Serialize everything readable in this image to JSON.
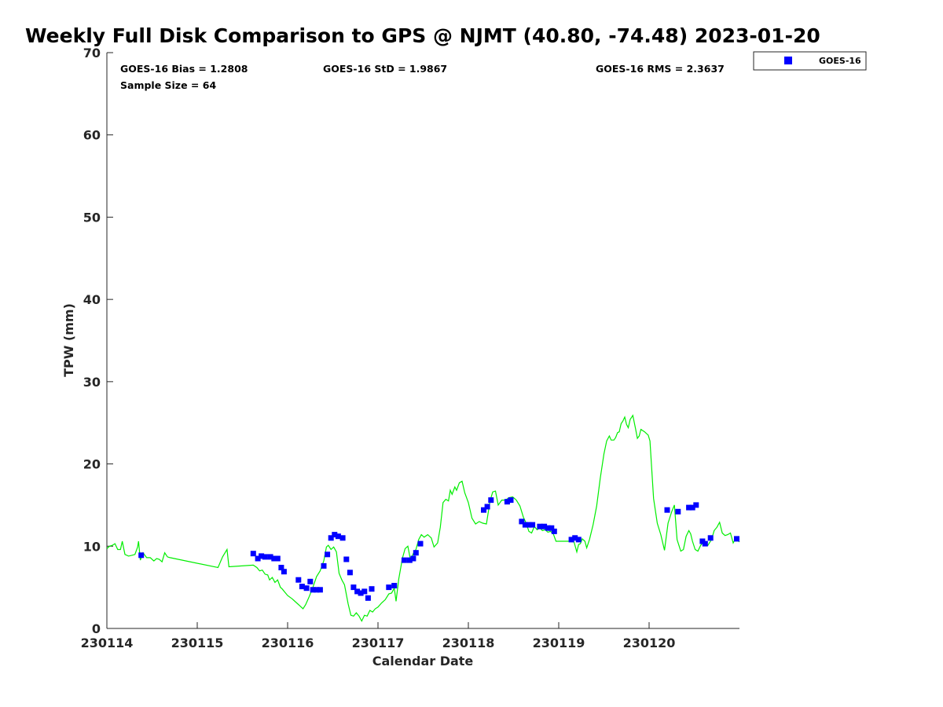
{
  "chart_data": {
    "type": "scatter",
    "title": "Weekly Full Disk Comparison to GPS @ NJMT (40.80, -74.48) 2023-01-20",
    "xlabel": "Calendar Date",
    "ylabel": "TPW (mm)",
    "xlim": [
      0,
      7.0
    ],
    "ylim": [
      0,
      70
    ],
    "x_tick_values": [
      0,
      1,
      2,
      3,
      4,
      5,
      6
    ],
    "x_tick_labels": [
      "230114",
      "230115",
      "230116",
      "230117",
      "230118",
      "230119",
      "230120"
    ],
    "y_ticks": [
      0,
      10,
      20,
      30,
      40,
      50,
      60,
      70
    ],
    "stats": {
      "bias": "GOES-16 Bias = 1.2808",
      "std": "GOES-16 StD = 1.9867",
      "rms": "GOES-16 RMS = 2.3637",
      "sample": "Sample Size = 64"
    },
    "legend": {
      "label": "GOES-16",
      "position": "top-right outside"
    },
    "colors": {
      "goes": "#0000ff",
      "gps": "#00ee00",
      "axis": "#262626"
    },
    "series": [
      {
        "name": "GOES-16",
        "kind": "scatter",
        "points": [
          [
            0.38,
            8.9
          ],
          [
            1.62,
            9.1
          ],
          [
            1.67,
            8.5
          ],
          [
            1.71,
            8.8
          ],
          [
            1.75,
            8.7
          ],
          [
            1.81,
            8.7
          ],
          [
            1.85,
            8.5
          ],
          [
            1.89,
            8.5
          ],
          [
            1.93,
            7.4
          ],
          [
            1.96,
            6.9
          ],
          [
            2.12,
            5.9
          ],
          [
            2.16,
            5.1
          ],
          [
            2.21,
            4.9
          ],
          [
            2.25,
            5.7
          ],
          [
            2.28,
            4.7
          ],
          [
            2.32,
            4.7
          ],
          [
            2.36,
            4.7
          ],
          [
            2.4,
            7.6
          ],
          [
            2.44,
            9.0
          ],
          [
            2.48,
            11.0
          ],
          [
            2.52,
            11.4
          ],
          [
            2.56,
            11.2
          ],
          [
            2.61,
            11.0
          ],
          [
            2.65,
            8.4
          ],
          [
            2.69,
            6.8
          ],
          [
            2.73,
            5.0
          ],
          [
            2.77,
            4.5
          ],
          [
            2.81,
            4.3
          ],
          [
            2.85,
            4.5
          ],
          [
            2.89,
            3.7
          ],
          [
            2.93,
            4.8
          ],
          [
            3.12,
            5.0
          ],
          [
            3.18,
            5.2
          ],
          [
            3.29,
            8.3
          ],
          [
            3.35,
            8.3
          ],
          [
            3.39,
            8.5
          ],
          [
            3.42,
            9.2
          ],
          [
            3.47,
            10.3
          ],
          [
            4.17,
            14.4
          ],
          [
            4.21,
            14.8
          ],
          [
            4.25,
            15.6
          ],
          [
            4.43,
            15.4
          ],
          [
            4.47,
            15.6
          ],
          [
            4.59,
            13.0
          ],
          [
            4.63,
            12.6
          ],
          [
            4.67,
            12.6
          ],
          [
            4.71,
            12.6
          ],
          [
            4.79,
            12.4
          ],
          [
            4.84,
            12.4
          ],
          [
            4.88,
            12.2
          ],
          [
            4.92,
            12.2
          ],
          [
            4.95,
            11.8
          ],
          [
            5.14,
            10.8
          ],
          [
            5.18,
            11.0
          ],
          [
            5.22,
            10.8
          ],
          [
            6.2,
            14.4
          ],
          [
            6.32,
            14.2
          ],
          [
            6.44,
            14.7
          ],
          [
            6.48,
            14.7
          ],
          [
            6.52,
            15.0
          ],
          [
            6.59,
            10.6
          ],
          [
            6.62,
            10.3
          ],
          [
            6.68,
            11.0
          ],
          [
            6.97,
            10.9
          ]
        ]
      },
      {
        "name": "GPS",
        "kind": "line",
        "points": [
          [
            0.0,
            9.7
          ],
          [
            0.03,
            10.0
          ],
          [
            0.06,
            10.1
          ],
          [
            0.09,
            10.3
          ],
          [
            0.12,
            9.6
          ],
          [
            0.15,
            9.6
          ],
          [
            0.17,
            10.6
          ],
          [
            0.2,
            9.0
          ],
          [
            0.24,
            8.8
          ],
          [
            0.28,
            8.9
          ],
          [
            0.31,
            9.0
          ],
          [
            0.34,
            9.9
          ],
          [
            0.35,
            10.6
          ],
          [
            0.37,
            8.3
          ],
          [
            0.4,
            9.2
          ],
          [
            0.44,
            8.6
          ],
          [
            0.48,
            8.6
          ],
          [
            0.52,
            8.2
          ],
          [
            0.55,
            8.5
          ],
          [
            0.58,
            8.4
          ],
          [
            0.61,
            8.1
          ],
          [
            0.64,
            9.2
          ],
          [
            0.67,
            8.7
          ],
          [
            0.7,
            8.6
          ],
          [
            1.23,
            7.4
          ],
          [
            1.28,
            8.7
          ],
          [
            1.33,
            9.6
          ],
          [
            1.35,
            7.5
          ],
          [
            1.62,
            7.7
          ],
          [
            1.66,
            7.4
          ],
          [
            1.69,
            7.0
          ],
          [
            1.72,
            7.1
          ],
          [
            1.75,
            6.6
          ],
          [
            1.78,
            6.5
          ],
          [
            1.8,
            5.9
          ],
          [
            1.83,
            6.2
          ],
          [
            1.86,
            5.6
          ],
          [
            1.89,
            5.9
          ],
          [
            1.92,
            5.0
          ],
          [
            1.94,
            4.8
          ],
          [
            1.97,
            4.4
          ],
          [
            2.0,
            4.0
          ],
          [
            2.05,
            3.6
          ],
          [
            2.1,
            3.1
          ],
          [
            2.15,
            2.6
          ],
          [
            2.17,
            2.4
          ],
          [
            2.2,
            2.9
          ],
          [
            2.24,
            3.9
          ],
          [
            2.28,
            5.0
          ],
          [
            2.32,
            6.3
          ],
          [
            2.36,
            7.0
          ],
          [
            2.4,
            8.2
          ],
          [
            2.43,
            9.9
          ],
          [
            2.45,
            10.1
          ],
          [
            2.48,
            9.6
          ],
          [
            2.51,
            9.9
          ],
          [
            2.54,
            9.3
          ],
          [
            2.57,
            6.7
          ],
          [
            2.6,
            5.9
          ],
          [
            2.63,
            5.3
          ],
          [
            2.67,
            3.0
          ],
          [
            2.7,
            1.6
          ],
          [
            2.73,
            1.5
          ],
          [
            2.76,
            1.9
          ],
          [
            2.79,
            1.5
          ],
          [
            2.82,
            0.9
          ],
          [
            2.85,
            1.6
          ],
          [
            2.88,
            1.5
          ],
          [
            2.91,
            2.2
          ],
          [
            2.94,
            2.0
          ],
          [
            2.97,
            2.4
          ],
          [
            3.0,
            2.6
          ],
          [
            3.04,
            3.1
          ],
          [
            3.08,
            3.5
          ],
          [
            3.12,
            4.2
          ],
          [
            3.15,
            4.3
          ],
          [
            3.18,
            4.9
          ],
          [
            3.2,
            3.3
          ],
          [
            3.23,
            6.0
          ],
          [
            3.27,
            8.5
          ],
          [
            3.3,
            9.7
          ],
          [
            3.33,
            10.0
          ],
          [
            3.36,
            8.3
          ],
          [
            3.39,
            9.1
          ],
          [
            3.42,
            9.6
          ],
          [
            3.45,
            10.8
          ],
          [
            3.48,
            11.4
          ],
          [
            3.51,
            11.1
          ],
          [
            3.55,
            11.4
          ],
          [
            3.59,
            11.0
          ],
          [
            3.62,
            9.9
          ],
          [
            3.66,
            10.4
          ],
          [
            3.69,
            12.3
          ],
          [
            3.72,
            15.3
          ],
          [
            3.75,
            15.7
          ],
          [
            3.78,
            15.5
          ],
          [
            3.8,
            16.8
          ],
          [
            3.82,
            16.3
          ],
          [
            3.85,
            17.2
          ],
          [
            3.87,
            16.8
          ],
          [
            3.9,
            17.7
          ],
          [
            3.93,
            17.9
          ],
          [
            3.96,
            16.5
          ],
          [
            4.0,
            15.3
          ],
          [
            4.04,
            13.4
          ],
          [
            4.08,
            12.7
          ],
          [
            4.12,
            13.0
          ],
          [
            4.16,
            12.8
          ],
          [
            4.2,
            12.7
          ],
          [
            4.24,
            15.5
          ],
          [
            4.27,
            16.6
          ],
          [
            4.3,
            16.7
          ],
          [
            4.33,
            15.0
          ],
          [
            4.37,
            15.6
          ],
          [
            4.41,
            15.6
          ],
          [
            4.45,
            15.9
          ],
          [
            4.49,
            16.0
          ],
          [
            4.53,
            15.6
          ],
          [
            4.57,
            14.9
          ],
          [
            4.61,
            13.5
          ],
          [
            4.64,
            12.8
          ],
          [
            4.67,
            11.8
          ],
          [
            4.7,
            11.6
          ],
          [
            4.73,
            12.4
          ],
          [
            4.76,
            12.0
          ],
          [
            4.79,
            12.2
          ],
          [
            4.82,
            11.9
          ],
          [
            4.85,
            12.0
          ],
          [
            4.88,
            11.7
          ],
          [
            4.91,
            11.8
          ],
          [
            4.94,
            11.5
          ],
          [
            4.97,
            10.6
          ],
          [
            5.05,
            10.6
          ],
          [
            5.12,
            10.6
          ],
          [
            5.17,
            10.5
          ],
          [
            5.2,
            9.3
          ],
          [
            5.22,
            10.2
          ],
          [
            5.24,
            10.3
          ],
          [
            5.26,
            10.9
          ],
          [
            5.29,
            10.6
          ],
          [
            5.31,
            9.8
          ],
          [
            5.34,
            10.8
          ],
          [
            5.38,
            12.6
          ],
          [
            5.42,
            14.9
          ],
          [
            5.46,
            18.3
          ],
          [
            5.5,
            21.2
          ],
          [
            5.53,
            22.8
          ],
          [
            5.56,
            23.4
          ],
          [
            5.58,
            22.9
          ],
          [
            5.61,
            22.9
          ],
          [
            5.63,
            23.2
          ],
          [
            5.65,
            23.8
          ],
          [
            5.67,
            23.9
          ],
          [
            5.69,
            24.9
          ],
          [
            5.71,
            25.2
          ],
          [
            5.73,
            25.7
          ],
          [
            5.75,
            24.8
          ],
          [
            5.77,
            24.4
          ],
          [
            5.79,
            25.4
          ],
          [
            5.82,
            25.9
          ],
          [
            5.85,
            24.3
          ],
          [
            5.87,
            23.1
          ],
          [
            5.89,
            23.4
          ],
          [
            5.91,
            24.2
          ],
          [
            5.95,
            23.9
          ],
          [
            5.99,
            23.5
          ],
          [
            6.01,
            22.8
          ],
          [
            6.05,
            15.8
          ],
          [
            6.09,
            12.8
          ],
          [
            6.13,
            11.4
          ],
          [
            6.17,
            9.5
          ],
          [
            6.21,
            12.8
          ],
          [
            6.25,
            14.2
          ],
          [
            6.28,
            15.0
          ],
          [
            6.31,
            10.8
          ],
          [
            6.35,
            9.4
          ],
          [
            6.38,
            9.6
          ],
          [
            6.41,
            11.2
          ],
          [
            6.44,
            11.9
          ],
          [
            6.46,
            11.5
          ],
          [
            6.48,
            10.6
          ],
          [
            6.51,
            9.6
          ],
          [
            6.54,
            9.4
          ],
          [
            6.57,
            10.1
          ],
          [
            6.61,
            10.6
          ],
          [
            6.65,
            10.1
          ],
          [
            6.69,
            10.8
          ],
          [
            6.72,
            11.9
          ],
          [
            6.75,
            12.3
          ],
          [
            6.78,
            12.9
          ],
          [
            6.81,
            11.6
          ],
          [
            6.84,
            11.3
          ],
          [
            6.87,
            11.4
          ],
          [
            6.9,
            11.6
          ],
          [
            6.93,
            10.4
          ],
          [
            6.96,
            11.0
          ],
          [
            7.0,
            10.5
          ]
        ]
      }
    ]
  }
}
